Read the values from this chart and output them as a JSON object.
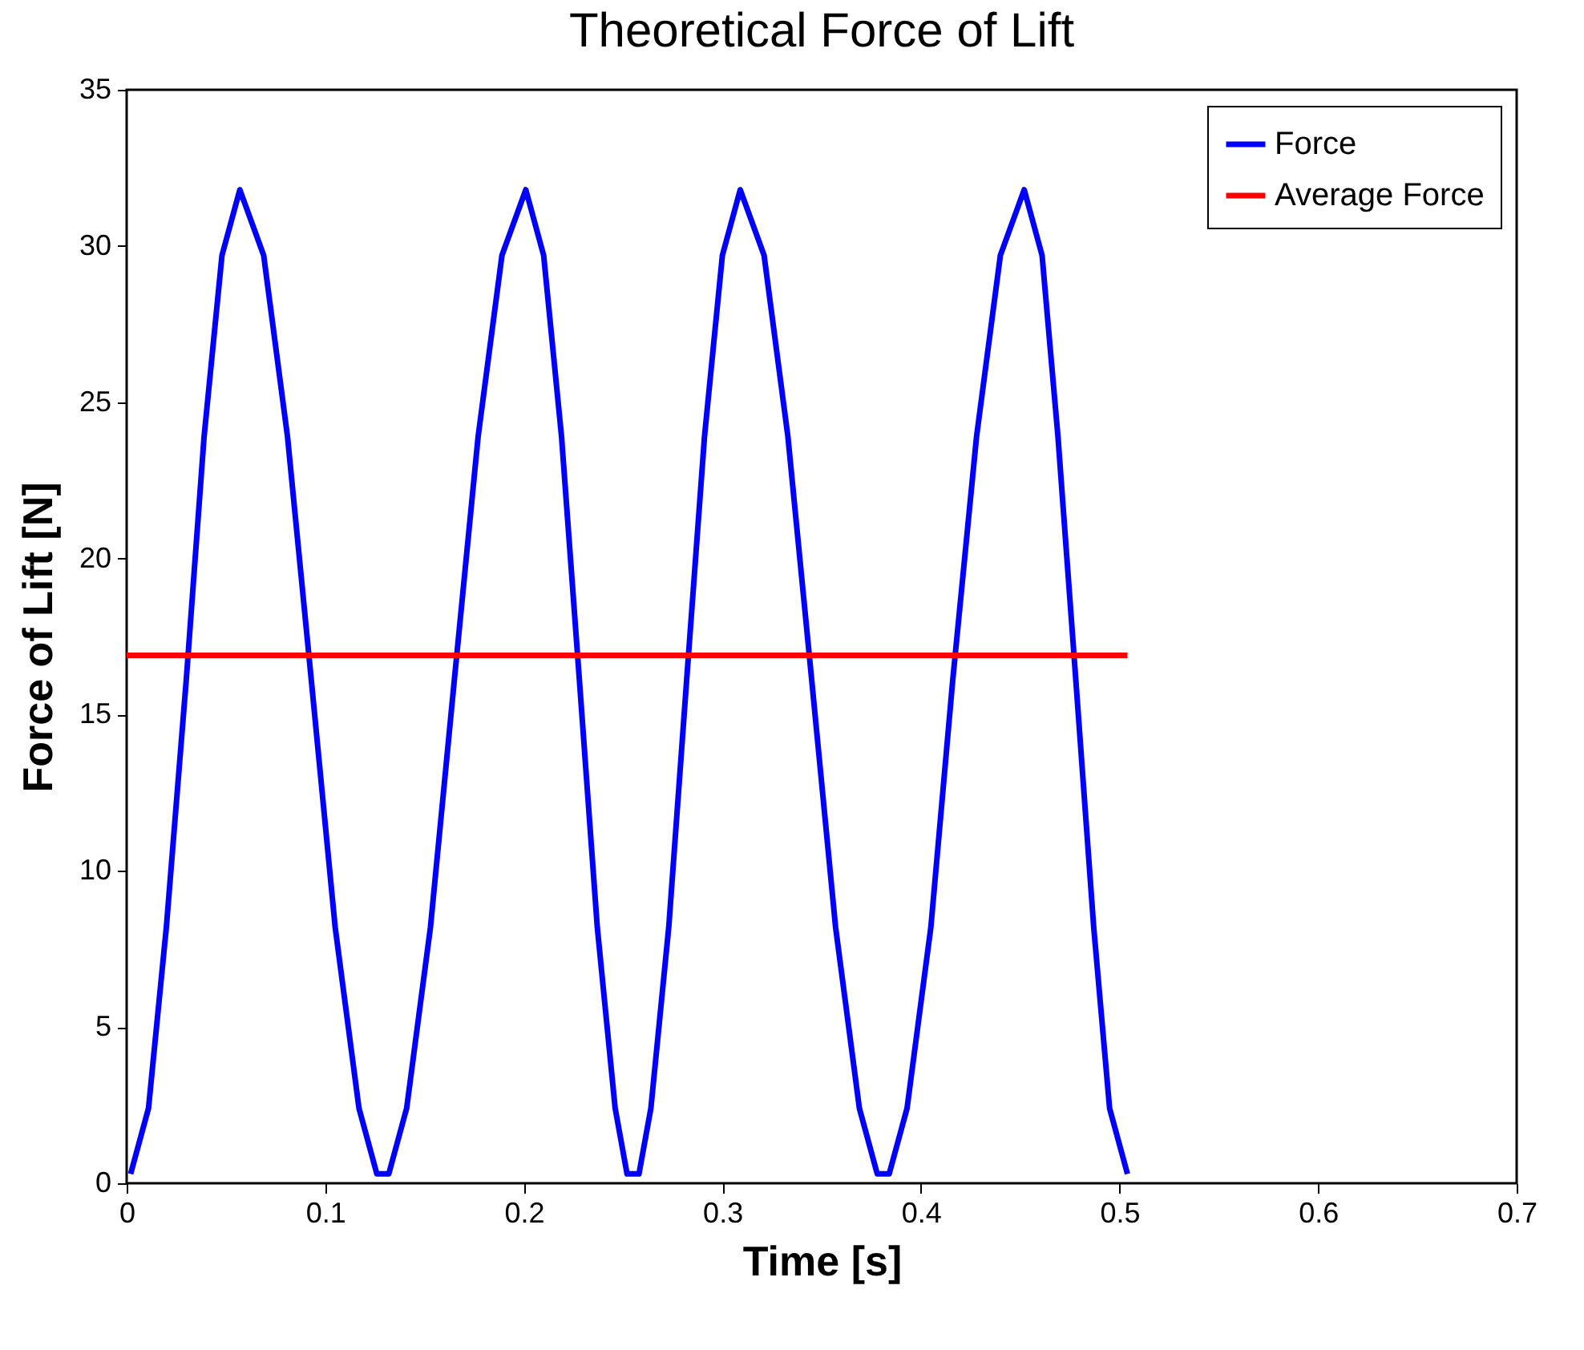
{
  "chart_data": {
    "type": "line",
    "title": "Theoretical Force of Lift",
    "xlabel": "Time [s]",
    "ylabel": "Force of Lift [N]",
    "xlim": [
      0,
      0.7
    ],
    "xticks": [
      0,
      0.1,
      0.2,
      0.3,
      0.4,
      0.5,
      0.6,
      0.7
    ],
    "ylim": [
      0,
      35
    ],
    "yticks": [
      0,
      5,
      10,
      15,
      20,
      25,
      30,
      35
    ],
    "grid": false,
    "legend": "top right",
    "line_style": "solid",
    "series": [
      {
        "name": "Force",
        "color": "#0000ff",
        "x": [
          0.002,
          0.011,
          0.02,
          0.03,
          0.039,
          0.048,
          0.057,
          0.069,
          0.081,
          0.093,
          0.105,
          0.117,
          0.126,
          0.132,
          0.141,
          0.153,
          0.165,
          0.177,
          0.189,
          0.201,
          0.21,
          0.219,
          0.228,
          0.237,
          0.246,
          0.252,
          0.258,
          0.264,
          0.273,
          0.282,
          0.291,
          0.3,
          0.309,
          0.321,
          0.333,
          0.345,
          0.357,
          0.369,
          0.378,
          0.384,
          0.393,
          0.405,
          0.416,
          0.428,
          0.44,
          0.452,
          0.461,
          0.469,
          0.478,
          0.487,
          0.495,
          0.504
        ],
        "values": [
          0.3,
          2.4,
          8.2,
          16.1,
          23.9,
          29.7,
          31.8,
          29.7,
          23.9,
          16.1,
          8.2,
          2.4,
          0.3,
          0.3,
          2.4,
          8.2,
          16.1,
          23.9,
          29.7,
          31.8,
          29.7,
          23.9,
          16.1,
          8.2,
          2.4,
          0.3,
          0.3,
          2.4,
          8.2,
          16.1,
          23.9,
          29.7,
          31.8,
          29.7,
          23.9,
          16.1,
          8.2,
          2.4,
          0.3,
          0.3,
          2.4,
          8.2,
          16.1,
          23.9,
          29.7,
          31.8,
          29.7,
          23.9,
          16.1,
          8.2,
          2.4,
          0.3
        ]
      },
      {
        "name": "Average Force",
        "color": "#ff0000",
        "x": [
          0,
          0.504
        ],
        "values": [
          16.9,
          16.9
        ]
      }
    ]
  }
}
